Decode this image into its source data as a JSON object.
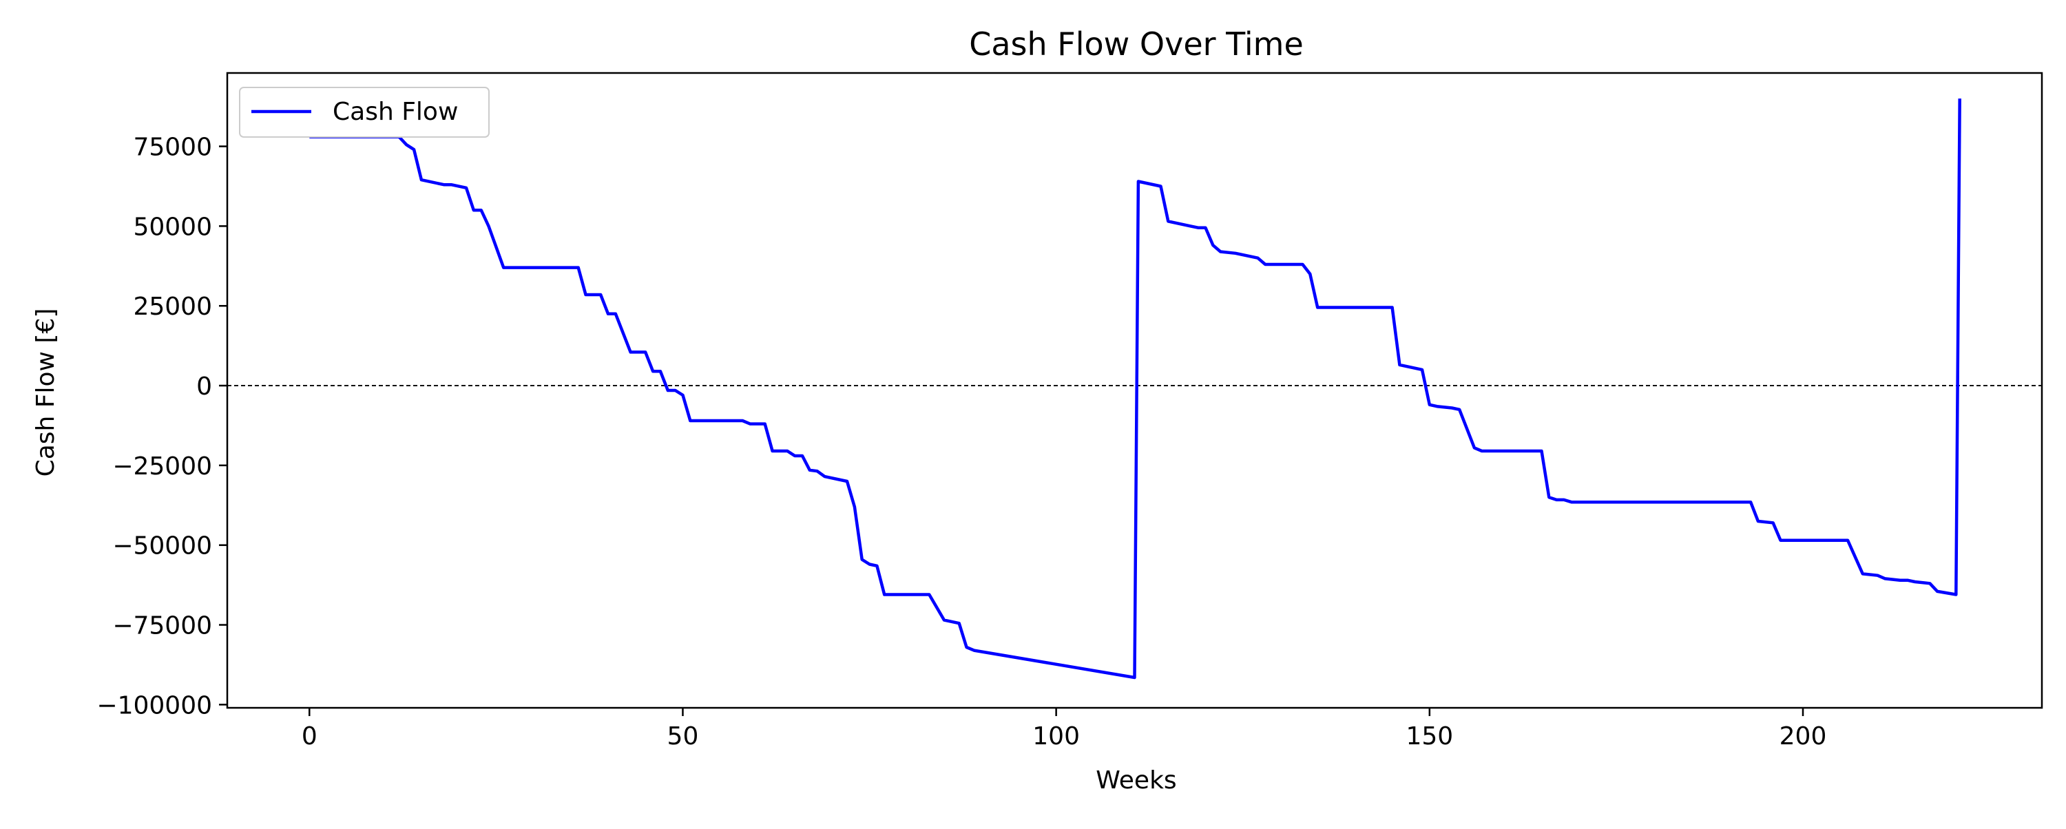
{
  "chart_data": {
    "type": "line",
    "title": "Cash Flow Over Time",
    "xlabel": "Weeks",
    "ylabel": "Cash Flow [€]",
    "xlim": [
      -11,
      232
    ],
    "ylim": [
      -101000,
      98000
    ],
    "xticks": [
      0,
      50,
      100,
      150,
      200
    ],
    "xtick_labels": [
      "0",
      "50",
      "100",
      "150",
      "200"
    ],
    "yticks": [
      -100000,
      -75000,
      -50000,
      -25000,
      0,
      25000,
      50000,
      75000
    ],
    "ytick_labels": [
      "−100000",
      "−75000",
      "−50000",
      "−25000",
      "0",
      "25000",
      "50000",
      "75000"
    ],
    "grid": false,
    "reference_line": {
      "y": 0,
      "style": "dashed",
      "color": "#000000"
    },
    "legend": {
      "position": "top-left",
      "entries": [
        "Cash Flow"
      ]
    },
    "series": [
      {
        "name": "Cash Flow",
        "color": "#0000ff",
        "points": [
          [
            0,
            78000
          ],
          [
            12,
            78000
          ],
          [
            13,
            75500
          ],
          [
            14,
            74000
          ],
          [
            15,
            64500
          ],
          [
            18,
            63000
          ],
          [
            19,
            63000
          ],
          [
            21,
            62000
          ],
          [
            22,
            55000
          ],
          [
            23,
            55000
          ],
          [
            24,
            50000
          ],
          [
            26,
            37000
          ],
          [
            36,
            37000
          ],
          [
            37,
            28500
          ],
          [
            39,
            28500
          ],
          [
            40,
            22500
          ],
          [
            41,
            22500
          ],
          [
            43,
            10500
          ],
          [
            45,
            10500
          ],
          [
            46,
            4500
          ],
          [
            47,
            4500
          ],
          [
            48,
            -1500
          ],
          [
            49,
            -1500
          ],
          [
            50,
            -3000
          ],
          [
            51,
            -11000
          ],
          [
            58,
            -11000
          ],
          [
            59,
            -12000
          ],
          [
            61,
            -12000
          ],
          [
            62,
            -20500
          ],
          [
            64,
            -20500
          ],
          [
            65,
            -22000
          ],
          [
            66,
            -22000
          ],
          [
            67,
            -26500
          ],
          [
            68,
            -26800
          ],
          [
            69,
            -28500
          ],
          [
            72,
            -30000
          ],
          [
            73,
            -38000
          ],
          [
            74,
            -54500
          ],
          [
            75,
            -56000
          ],
          [
            76,
            -56500
          ],
          [
            77,
            -65500
          ],
          [
            83,
            -65500
          ],
          [
            85,
            -73500
          ],
          [
            87,
            -74500
          ],
          [
            88,
            -82000
          ],
          [
            89,
            -83000
          ],
          [
            110.5,
            -91500
          ],
          [
            111,
            64000
          ],
          [
            114,
            62500
          ],
          [
            115,
            51500
          ],
          [
            118,
            50000
          ],
          [
            119,
            49500
          ],
          [
            120,
            49500
          ],
          [
            121,
            44000
          ],
          [
            122,
            42000
          ],
          [
            124,
            41500
          ],
          [
            127,
            40000
          ],
          [
            128,
            38000
          ],
          [
            133,
            38000
          ],
          [
            134,
            35000
          ],
          [
            135,
            24500
          ],
          [
            145,
            24500
          ],
          [
            146,
            6500
          ],
          [
            149,
            5000
          ],
          [
            150,
            -6000
          ],
          [
            151,
            -6500
          ],
          [
            153,
            -7000
          ],
          [
            154,
            -7500
          ],
          [
            156,
            -19500
          ],
          [
            157,
            -20500
          ],
          [
            165,
            -20500
          ],
          [
            166,
            -35000
          ],
          [
            167,
            -35800
          ],
          [
            168,
            -35800
          ],
          [
            169,
            -36500
          ],
          [
            193,
            -36500
          ],
          [
            194,
            -42500
          ],
          [
            196,
            -43000
          ],
          [
            197,
            -48500
          ],
          [
            206,
            -48500
          ],
          [
            208,
            -59000
          ],
          [
            210,
            -59500
          ],
          [
            211,
            -60500
          ],
          [
            213,
            -61000
          ],
          [
            214,
            -61000
          ],
          [
            215,
            -61500
          ],
          [
            217,
            -62000
          ],
          [
            218,
            -64500
          ],
          [
            220.5,
            -65500
          ],
          [
            221,
            90000
          ]
        ]
      }
    ]
  }
}
